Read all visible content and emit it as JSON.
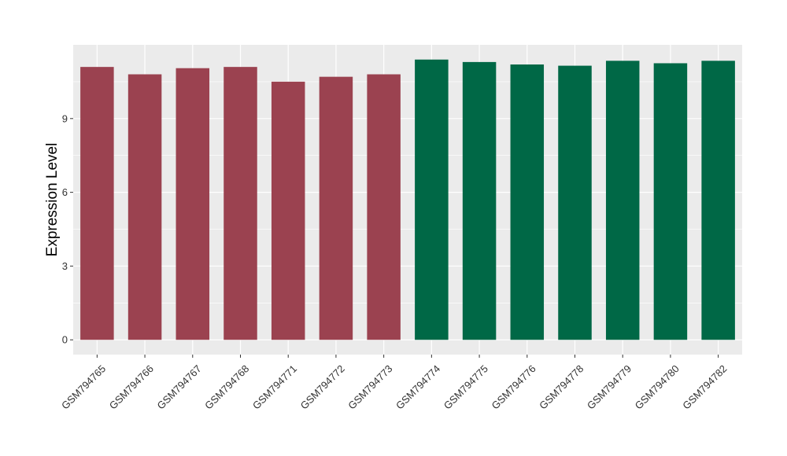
{
  "chart_data": {
    "type": "bar",
    "title": "",
    "xlabel": "",
    "ylabel": "Expression Level",
    "ylim": [
      -0.6,
      12.0
    ],
    "yticks": [
      0,
      3,
      6,
      9
    ],
    "grid": true,
    "legend": "none",
    "colors": {
      "group1": "#9b4250",
      "group2": "#006846",
      "panel": "#ebebeb",
      "grid": "#ffffff"
    },
    "categories": [
      "GSM794765",
      "GSM794766",
      "GSM794767",
      "GSM794768",
      "GSM794771",
      "GSM794772",
      "GSM794773",
      "GSM794774",
      "GSM794775",
      "GSM794776",
      "GSM794778",
      "GSM794779",
      "GSM794780",
      "GSM794782"
    ],
    "values": [
      11.1,
      10.8,
      11.05,
      11.1,
      10.5,
      10.7,
      10.8,
      11.4,
      11.3,
      11.2,
      11.15,
      11.35,
      11.25,
      11.35
    ],
    "groups": [
      1,
      1,
      1,
      1,
      1,
      1,
      1,
      2,
      2,
      2,
      2,
      2,
      2,
      2
    ]
  }
}
